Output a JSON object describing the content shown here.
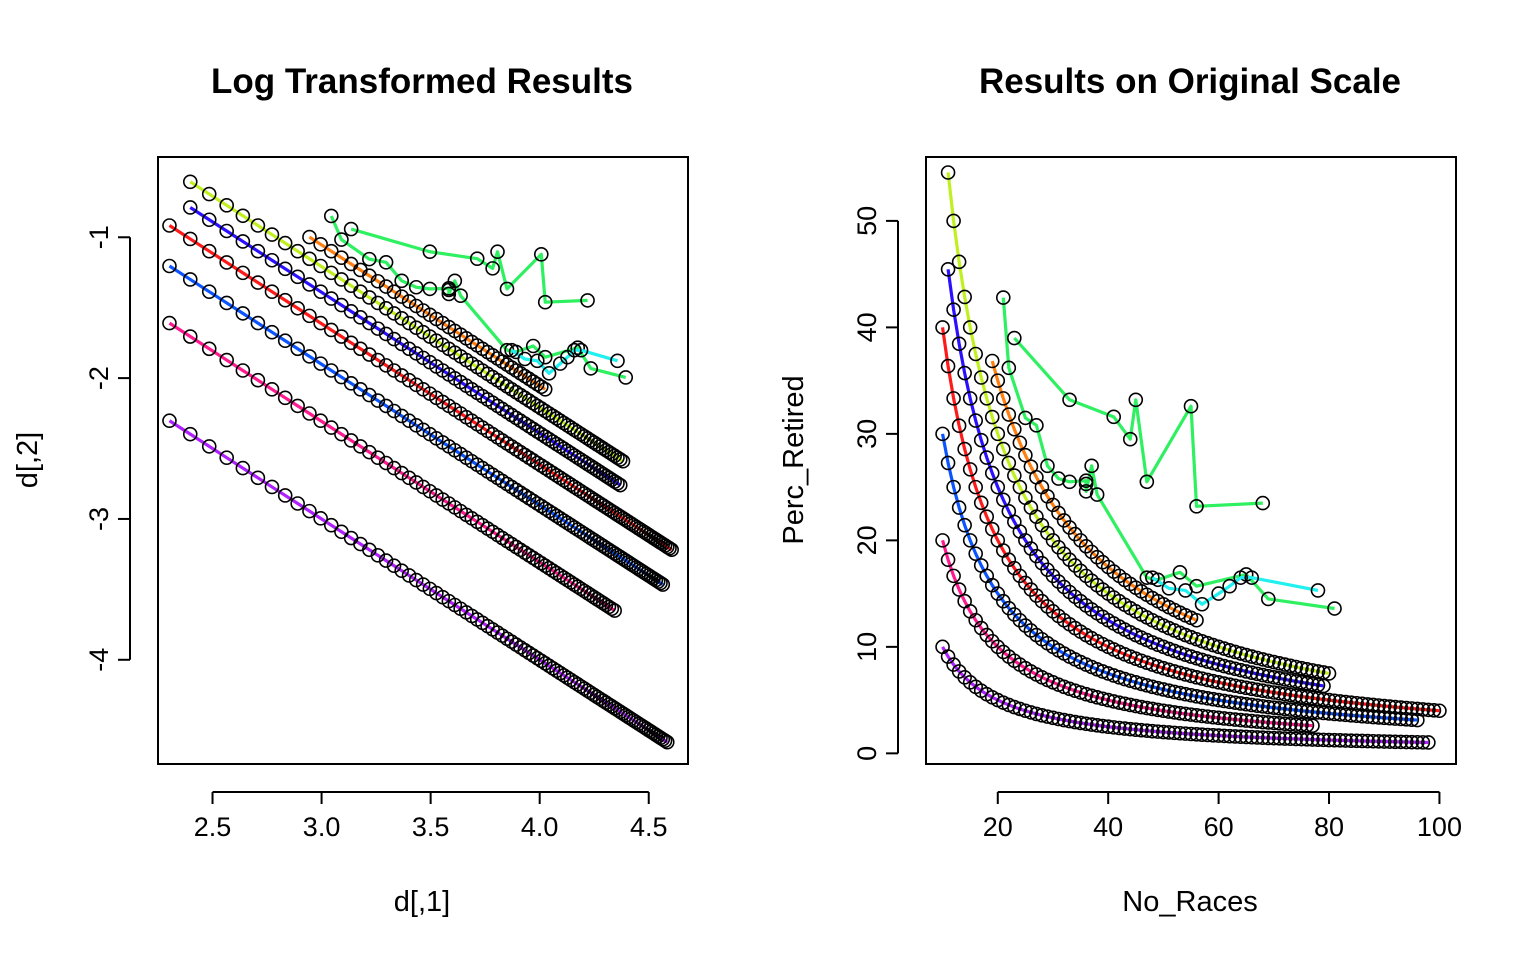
{
  "chart_data": [
    {
      "type": "scatter",
      "title": "Log Transformed Results",
      "xlabel": "d[,1]",
      "ylabel": "d[,2]",
      "xlim": [
        2.25,
        4.68
      ],
      "ylim": [
        -4.74,
        -0.43
      ],
      "xticks": [
        "2.5",
        "3.0",
        "3.5",
        "4.0",
        "4.5"
      ],
      "yticks": [
        "-1",
        "-2",
        "-3",
        "-4"
      ],
      "marker": "open-circle",
      "lines": "connected fitted curve per series",
      "series_note": "one curve per group; colors from a rainbow palette"
    },
    {
      "type": "scatter",
      "title": "Results on Original Scale",
      "xlabel": "No_Races",
      "ylabel": "Perc_Retired",
      "xlim": [
        7,
        103
      ],
      "ylim": [
        -1,
        56
      ],
      "xticks": [
        "20",
        "40",
        "60",
        "80",
        "100"
      ],
      "yticks": [
        "0",
        "10",
        "20",
        "30",
        "40",
        "50"
      ],
      "marker": "open-circle",
      "lines": "connected fitted curve per series"
    }
  ],
  "series": [
    {
      "color": "#ff1a1a",
      "k": 400,
      "nmin": 10,
      "nmax": 100,
      "kind": "smooth"
    },
    {
      "color": "#0a55ff",
      "k": 300,
      "nmin": 10,
      "nmax": 96,
      "kind": "smooth"
    },
    {
      "color": "#ff1a90",
      "k": 200,
      "nmin": 10,
      "nmax": 77,
      "kind": "smooth"
    },
    {
      "color": "#b020ff",
      "k": 100,
      "nmin": 10,
      "nmax": 98,
      "kind": "smooth"
    },
    {
      "color": "#2a10ff",
      "k": 500,
      "nmin": 11,
      "nmax": 79,
      "kind": "smooth"
    },
    {
      "color": "#c0f020",
      "k": 600,
      "nmin": 11,
      "nmax": 80,
      "kind": "smooth"
    },
    {
      "color": "#ff7f10",
      "k": 700,
      "nmin": 19,
      "nmax": 56,
      "kind": "smooth"
    },
    {
      "color": "#2ef060",
      "kind": "points",
      "pts": [
        [
          21,
          42.8
        ],
        [
          22,
          36.2
        ],
        [
          25,
          31.5
        ],
        [
          27,
          30.8
        ],
        [
          29,
          27
        ],
        [
          31,
          25.8
        ],
        [
          33,
          25.5
        ],
        [
          36,
          25.6
        ],
        [
          36,
          25.3
        ],
        [
          36,
          24.6
        ],
        [
          37,
          27
        ],
        [
          38,
          24.3
        ],
        [
          47,
          16.5
        ],
        [
          49,
          16.3
        ],
        [
          53,
          17
        ],
        [
          56,
          15.7
        ],
        [
          65,
          16.8
        ],
        [
          69,
          14.5
        ],
        [
          81,
          13.6
        ]
      ]
    },
    {
      "color": "#2ef060",
      "kind": "points",
      "pts": [
        [
          23,
          39
        ],
        [
          33,
          33.2
        ],
        [
          41,
          31.6
        ],
        [
          44,
          29.5
        ],
        [
          45,
          33.2
        ],
        [
          47,
          25.5
        ],
        [
          55,
          32.6
        ],
        [
          56,
          23.2
        ],
        [
          68,
          23.5
        ]
      ]
    },
    {
      "color": "#20f0f0",
      "kind": "points",
      "pts": [
        [
          48,
          16.5
        ],
        [
          51,
          15.5
        ],
        [
          54,
          15.3
        ],
        [
          57,
          14
        ],
        [
          60,
          15
        ],
        [
          62,
          15.7
        ],
        [
          64,
          16.5
        ],
        [
          66,
          16.5
        ],
        [
          78,
          15.3
        ]
      ]
    }
  ]
}
